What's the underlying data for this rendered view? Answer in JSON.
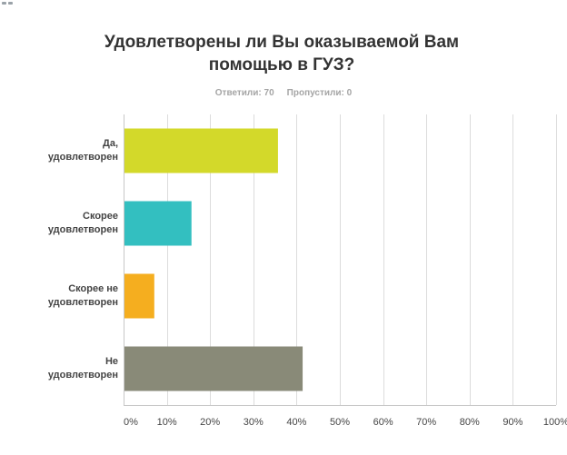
{
  "title": "Удовлетворены ли Вы оказываемой Вам помощью в ГУЗ?",
  "stats": {
    "answered": "Ответили: 70",
    "skipped": "Пропустили: 0"
  },
  "chart_data": {
    "type": "bar",
    "orientation": "horizontal",
    "title": "Удовлетворены ли Вы оказываемой Вам помощью в ГУЗ?",
    "categories": [
      "Да, удовлетворен",
      "Скорее удовлетворен",
      "Скорее не удовлетворен",
      "Не удовлетворен"
    ],
    "category_lines": [
      [
        "Да,",
        "удовлетворен"
      ],
      [
        "Скорее",
        "удовлетворен"
      ],
      [
        "Скорее не",
        "удовлетворен"
      ],
      [
        "Не",
        "удовлетворен"
      ]
    ],
    "values": [
      35.7,
      15.7,
      7.1,
      41.4
    ],
    "colors": [
      "#d3d92a",
      "#33bfc0",
      "#f5ae1f",
      "#898a78"
    ],
    "xlim": [
      0,
      100
    ],
    "x_ticks": [
      0,
      10,
      20,
      30,
      40,
      50,
      60,
      70,
      80,
      90,
      100
    ],
    "x_tick_labels": [
      "0%",
      "10%",
      "20%",
      "30%",
      "40%",
      "50%",
      "60%",
      "70%",
      "80%",
      "90%",
      "100%"
    ],
    "grid": true
  }
}
